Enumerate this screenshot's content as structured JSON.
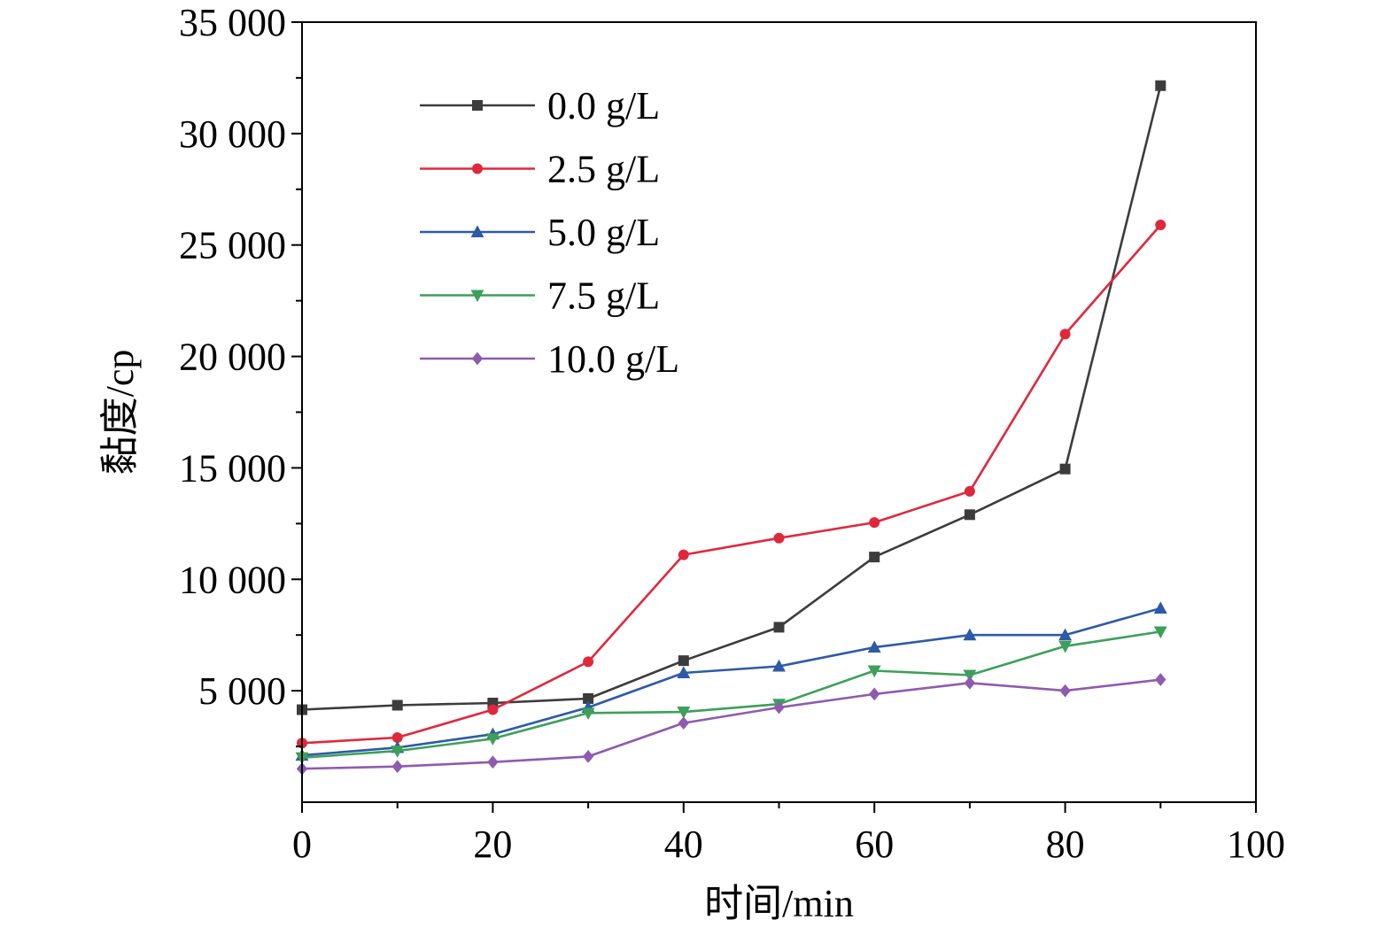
{
  "chart_data": {
    "type": "line",
    "title": "",
    "xlabel": "时间/min",
    "ylabel": "黏度/cp",
    "xlim": [
      0,
      100
    ],
    "ylim": [
      0,
      35000
    ],
    "x_ticks": [
      0,
      20,
      40,
      60,
      80,
      100
    ],
    "x_tick_labels": [
      "0",
      "20",
      "40",
      "60",
      "80",
      "100"
    ],
    "y_ticks": [
      5000,
      10000,
      15000,
      20000,
      25000,
      30000,
      35000
    ],
    "y_tick_labels": [
      "5 000",
      "10 000",
      "15 000",
      "20 000",
      "25 000",
      "30 000",
      "35 000"
    ],
    "grid": false,
    "legend_position": "top-left",
    "x": [
      0,
      10,
      20,
      30,
      40,
      50,
      60,
      70,
      80,
      90
    ],
    "series": [
      {
        "name": "0.0 g/L",
        "color": "#3c3c3c",
        "marker": "square",
        "values": [
          4150,
          4350,
          4450,
          4650,
          6350,
          7850,
          11000,
          12900,
          14950,
          32150
        ]
      },
      {
        "name": "2.5 g/L",
        "color": "#e0283c",
        "marker": "circle",
        "values": [
          2650,
          2900,
          4150,
          6300,
          11100,
          11850,
          12550,
          13950,
          21000,
          25900
        ]
      },
      {
        "name": "5.0 g/L",
        "color": "#2d5aa8",
        "marker": "triangle-up",
        "values": [
          2100,
          2450,
          3050,
          4250,
          5800,
          6100,
          6950,
          7500,
          7500,
          8700
        ]
      },
      {
        "name": "7.5 g/L",
        "color": "#3ca05a",
        "marker": "triangle-down",
        "values": [
          2000,
          2300,
          2850,
          4000,
          4050,
          4400,
          5900,
          5700,
          7000,
          7650
        ]
      },
      {
        "name": "10.0 g/L",
        "color": "#8e5bb0",
        "marker": "diamond",
        "values": [
          1500,
          1600,
          1800,
          2050,
          3550,
          4250,
          4850,
          5350,
          5000,
          5500
        ]
      }
    ]
  }
}
